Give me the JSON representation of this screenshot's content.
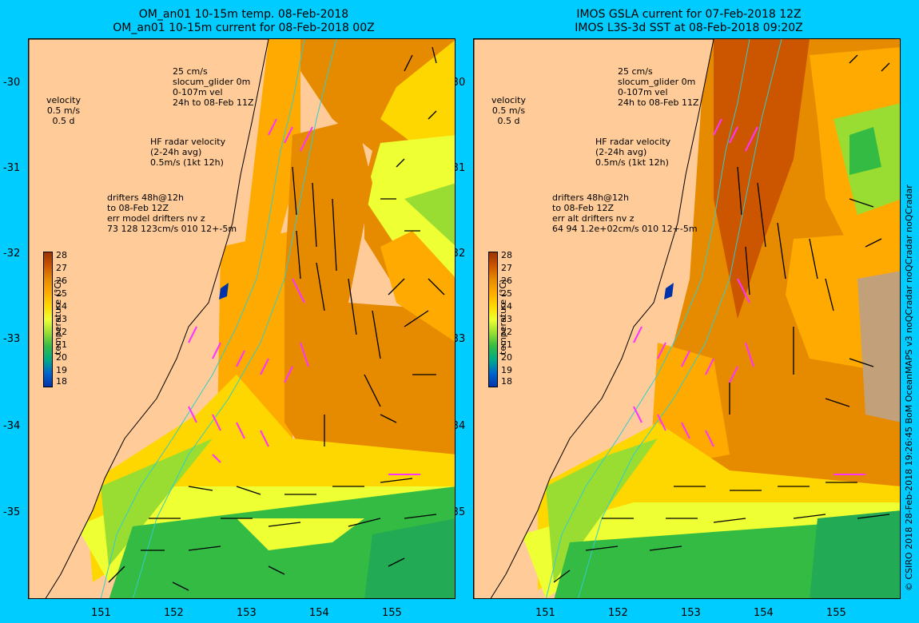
{
  "left_panel": {
    "title_line1": "OM_an01 10-15m temp. 08-Feb-2018",
    "title_line2": "OM_an01 10-15m current for 08-Feb-2018 00Z",
    "legend_glider": [
      "25 cm/s",
      "slocum_glider 0m",
      "0-107m vel",
      "24h to 08-Feb 11Z"
    ],
    "legend_velocity": [
      "velocity",
      "0.5 m/s",
      "0.5 d"
    ],
    "legend_radar": [
      "HF radar velocity",
      "(2-24h avg)",
      "0.5m/s (1kt 12h)"
    ],
    "legend_drifters": [
      "drifters 48h@12h",
      "to 08-Feb 12Z",
      "err model drifters nv z",
      "73 128 123cm/s 010 12+-5m"
    ]
  },
  "right_panel": {
    "title_line1": "IMOS GSLA current for 07-Feb-2018 12Z",
    "title_line2": "IMOS L3S-3d SST at 08-Feb-2018 09:20Z",
    "legend_glider": [
      "25 cm/s",
      "slocum_glider 0m",
      "0-107m vel",
      "24h to 08-Feb 11Z"
    ],
    "legend_velocity": [
      "velocity",
      "0.5 m/s",
      "0.5 d"
    ],
    "legend_radar": [
      "HF radar velocity",
      "(2-24h avg)",
      "0.5m/s (1kt 12h)"
    ],
    "legend_drifters": [
      "drifters 48h@12h",
      "to 08-Feb 12Z",
      "err alt drifters nv z",
      "64 94 1.2e+02cm/s 010 12+-5m"
    ]
  },
  "colorbar": {
    "title": "temperature (°C)",
    "ticks": [
      "28",
      "27",
      "26",
      "25",
      "24",
      "23",
      "22",
      "21",
      "20",
      "19",
      "18"
    ],
    "colors": [
      "#993300",
      "#cc5500",
      "#e68a00",
      "#ffaa00",
      "#ffd700",
      "#eeff33",
      "#99dd33",
      "#33bb44",
      "#00aa88",
      "#0066cc",
      "#0033aa"
    ]
  },
  "axes": {
    "y_ticks": [
      "-30",
      "-31",
      "-32",
      "-33",
      "-34",
      "-35"
    ],
    "x_ticks": [
      "151",
      "152",
      "153",
      "154",
      "155"
    ]
  },
  "credit": "© CSIRO 2018   28-Feb-2018 19:26:45 BoM OceanMAPS v3 noQCradar noQCradar noQCradar",
  "colors": {
    "background": "#00ccff",
    "land": "#ffcc99",
    "glider": "#ff33ff",
    "current_arrows": "#000000",
    "isobath": "#33cccc"
  }
}
